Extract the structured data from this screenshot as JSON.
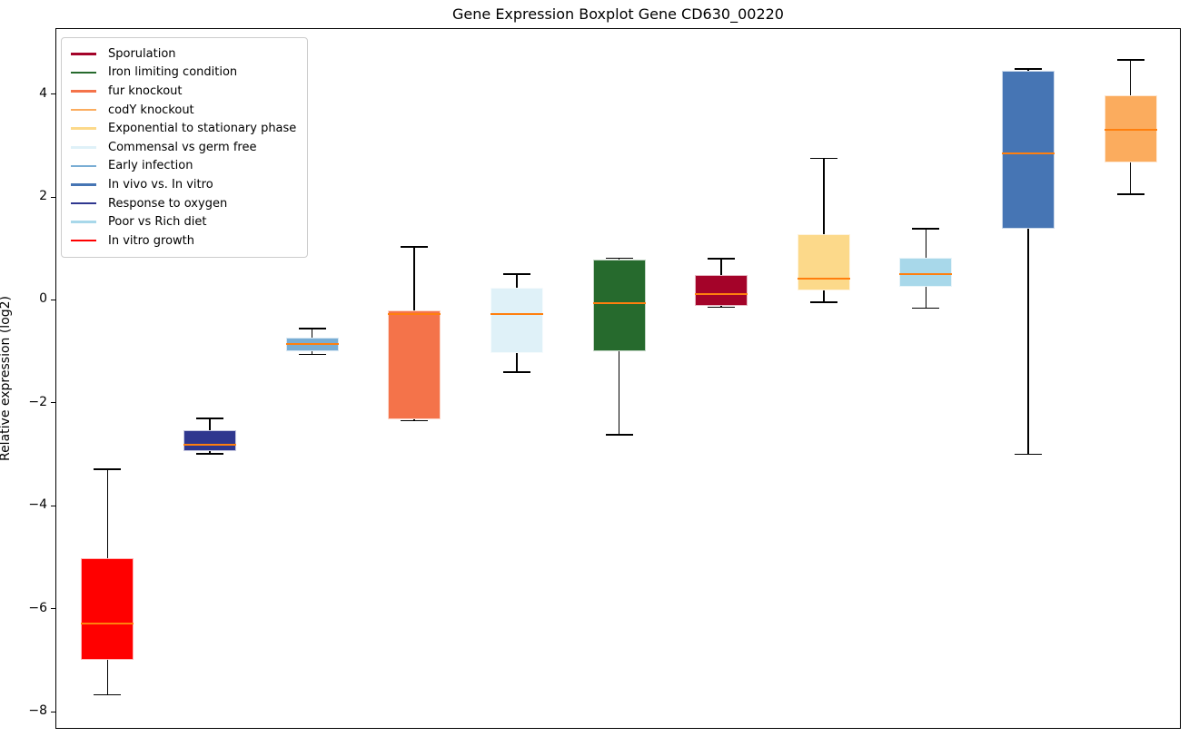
{
  "title": "Gene Expression Boxplot Gene CD630_00220",
  "chart_data": {
    "type": "boxplot",
    "title": "Gene Expression Boxplot Gene CD630_00220",
    "xlabel": "",
    "ylabel": "Relative expression (log2)",
    "ylim": [
      -8.33,
      5.28
    ],
    "yticks": [
      4,
      2,
      0,
      -2,
      -4,
      -6,
      -8
    ],
    "grid": false,
    "legend_position": "upper left",
    "median_color": "#FF7F0E",
    "whisker_color": "#000000",
    "legend": [
      {
        "label": "Sporulation",
        "color": "#A40329"
      },
      {
        "label": "Iron limiting condition",
        "color": "#266A2D"
      },
      {
        "label": "fur knockout",
        "color": "#F4734A"
      },
      {
        "label": "codY knockout",
        "color": "#FBAC5E"
      },
      {
        "label": "Exponential to stationary phase",
        "color": "#FCD98A"
      },
      {
        "label": "Commensal vs germ free",
        "color": "#DFF1F8"
      },
      {
        "label": "Early infection",
        "color": "#79ADD4"
      },
      {
        "label": "In vivo vs. In vitro",
        "color": "#4675B4"
      },
      {
        "label": "Response to oxygen",
        "color": "#2F378F"
      },
      {
        "label": "Poor vs Rich diet",
        "color": "#A8D8EA"
      },
      {
        "label": "In vitro growth",
        "color": "#FF0000"
      }
    ],
    "boxes": [
      {
        "label": "In vitro growth",
        "color": "#FF0000",
        "whislo": -7.65,
        "q1": -6.97,
        "med": -6.26,
        "q3": -5.0,
        "whishi": -3.27
      },
      {
        "label": "Response to oxygen",
        "color": "#2F378F",
        "whislo": -2.97,
        "q1": -2.92,
        "med": -2.8,
        "q3": -2.52,
        "whishi": -2.28
      },
      {
        "label": "Early infection",
        "color": "#79ADD4",
        "whislo": -1.04,
        "q1": -0.97,
        "med": -0.83,
        "q3": -0.72,
        "whishi": -0.54
      },
      {
        "label": "fur knockout",
        "color": "#F4734A",
        "whislo": -2.33,
        "q1": -2.3,
        "med": -0.26,
        "q3": -0.18,
        "whishi": 1.05
      },
      {
        "label": "Commensal vs germ free",
        "color": "#DFF1F8",
        "whislo": -1.38,
        "q1": -1.01,
        "med": -0.25,
        "q3": 0.25,
        "whishi": 0.52
      },
      {
        "label": "Iron limiting condition",
        "color": "#266A2D",
        "whislo": -2.6,
        "q1": -0.97,
        "med": -0.04,
        "q3": 0.8,
        "whishi": 0.83
      },
      {
        "label": "Sporulation",
        "color": "#A40329",
        "whislo": -0.12,
        "q1": -0.1,
        "med": 0.13,
        "q3": 0.5,
        "whishi": 0.82
      },
      {
        "label": "Exponential to stationary phase",
        "color": "#FCD98A",
        "whislo": -0.03,
        "q1": 0.21,
        "med": 0.44,
        "q3": 1.3,
        "whishi": 2.77
      },
      {
        "label": "Poor vs Rich diet",
        "color": "#A8D8EA",
        "whislo": -0.14,
        "q1": 0.28,
        "med": 0.52,
        "q3": 0.84,
        "whishi": 1.4
      },
      {
        "label": "In vivo vs. In vitro",
        "color": "#4675B4",
        "whislo": -2.98,
        "q1": 1.4,
        "med": 2.86,
        "q3": 4.47,
        "whishi": 4.5
      },
      {
        "label": "codY knockout",
        "color": "#FBAC5E",
        "whislo": 2.07,
        "q1": 2.68,
        "med": 3.32,
        "q3": 4.0,
        "whishi": 4.68
      }
    ]
  }
}
